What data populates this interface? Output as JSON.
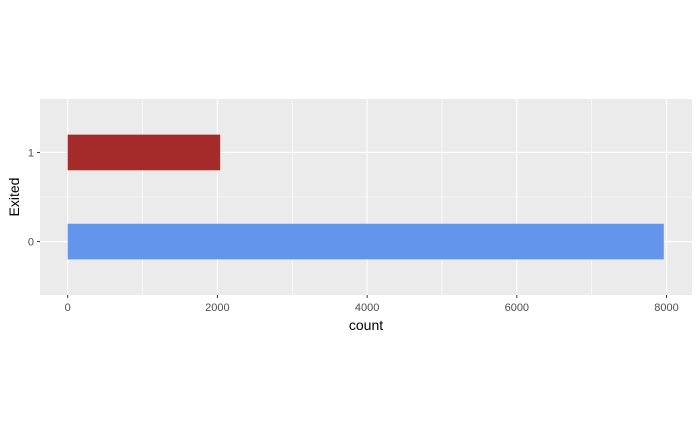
{
  "chart_data": {
    "type": "bar",
    "orientation": "horizontal",
    "title": "",
    "xlabel": "count",
    "ylabel": "Exited",
    "categories": [
      "0",
      "1"
    ],
    "values": [
      7963,
      2037
    ],
    "bar_colors": [
      "#6495ED",
      "#A52A2A"
    ],
    "xlim": [
      -370,
      8340
    ],
    "x_ticks": [
      0,
      2000,
      4000,
      6000,
      8000
    ],
    "x_tick_labels": [
      "0",
      "2000",
      "4000",
      "6000",
      "8000"
    ],
    "grid": true,
    "panel_background": "#EBEBEB",
    "grid_color": "#FFFFFF",
    "legend": "none"
  }
}
